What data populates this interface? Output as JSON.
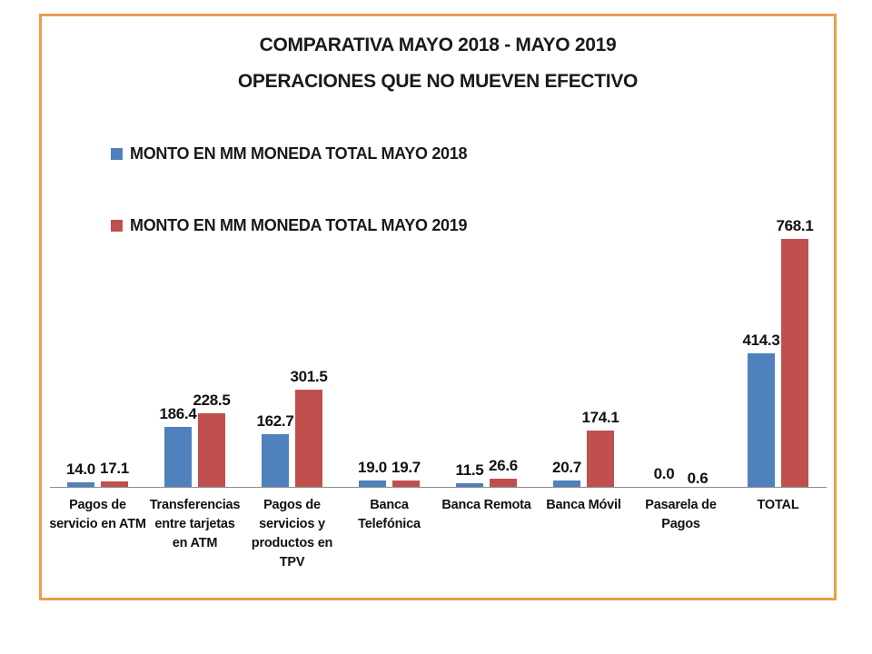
{
  "frame": {
    "border_color": "#ED9C4D"
  },
  "title": {
    "line1": "COMPARATIVA MAYO 2018 - MAYO 2019",
    "line2": "OPERACIONES QUE NO MUEVEN EFECTIVO"
  },
  "chart_data": {
    "type": "bar",
    "title": "COMPARATIVA MAYO 2018 - MAYO 2019 OPERACIONES QUE NO MUEVEN EFECTIVO",
    "categories": [
      "Pagos de servicio en ATM",
      "Transferencias entre tarjetas en ATM",
      "Pagos de servicios y productos en TPV",
      "Banca Telefónica",
      "Banca Remota",
      "Banca Móvil",
      "Pasarela de Pagos",
      "TOTAL"
    ],
    "series": [
      {
        "name": "MONTO EN MM MONEDA TOTAL MAYO 2018",
        "color": "#4F81BD",
        "values": [
          14.0,
          186.4,
          162.7,
          19.0,
          11.5,
          20.7,
          0.0,
          414.3
        ]
      },
      {
        "name": "MONTO EN MM MONEDA TOTAL MAYO 2019",
        "color": "#C0504D",
        "values": [
          17.1,
          228.5,
          301.5,
          19.7,
          26.6,
          174.1,
          0.6,
          768.1
        ]
      }
    ],
    "value_labels_decimals": 1,
    "xlabel": "",
    "ylabel": "",
    "ylim": [
      0,
      800
    ],
    "grid": false,
    "y_axis_visible": false,
    "legend_position": "upper-left, stacked vertically",
    "axis_line_color": "#8c8c8c"
  }
}
